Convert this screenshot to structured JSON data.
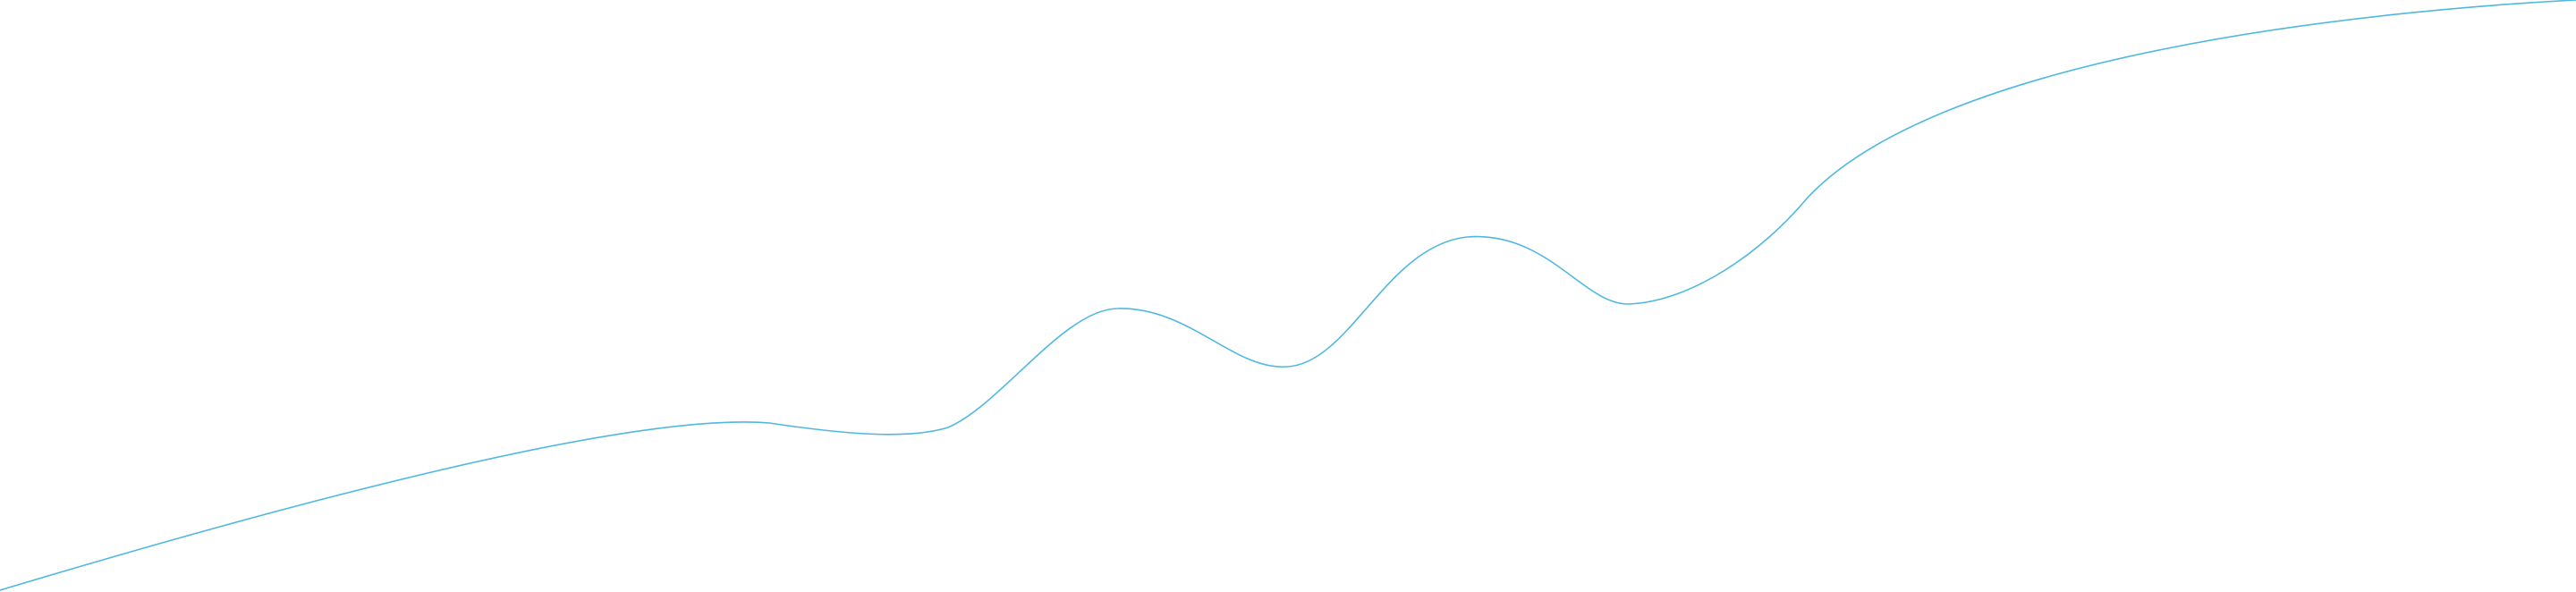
{
  "background_color": "#ffffff",
  "wave": {
    "stroke_color": "#4fb8e0"
  }
}
